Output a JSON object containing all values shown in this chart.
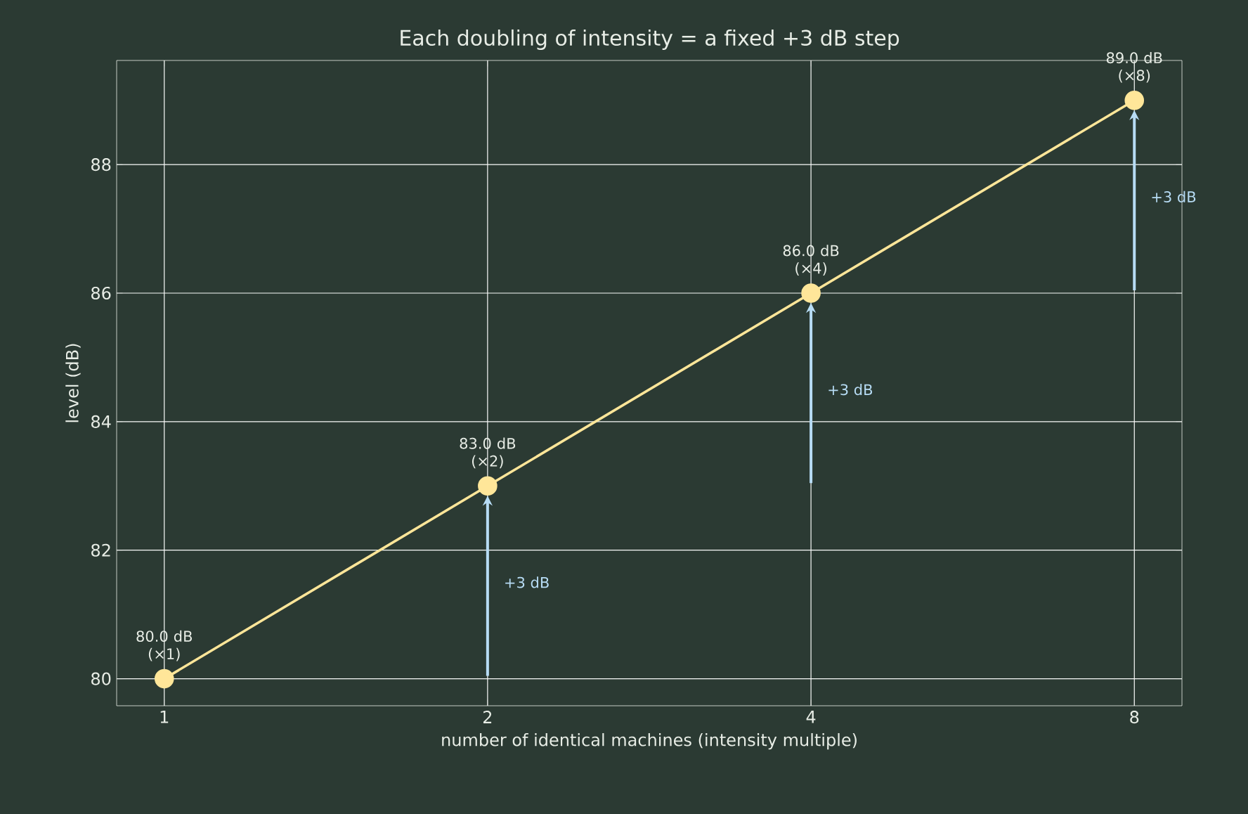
{
  "chart_data": {
    "type": "line",
    "title": "Each doubling of intensity = a fixed +3 dB step",
    "xlabel": "number of identical machines (intensity multiple)",
    "ylabel": "level (dB)",
    "x": [
      1,
      2,
      4,
      8
    ],
    "series": [
      {
        "color": "#ffe699",
        "values": [
          80.0,
          83.0,
          86.0,
          89.0
        ],
        "value_labels": [
          "80.0 dB (×1)",
          "83.0 dB (×2)",
          "86.0 dB (×4)",
          "89.0 dB (×8)"
        ]
      }
    ],
    "log": "x",
    "xlim": [
      0.903,
      8.86
    ],
    "ylim": [
      79.58,
      89.62
    ],
    "xticks": [
      1,
      2,
      4,
      8
    ],
    "yticks": [
      80,
      82,
      84,
      86,
      88
    ],
    "grid": true,
    "marker": "circle",
    "line_style": "solid",
    "annotations": [
      "+3 dB",
      "+3 dB",
      "+3 dB"
    ]
  }
}
